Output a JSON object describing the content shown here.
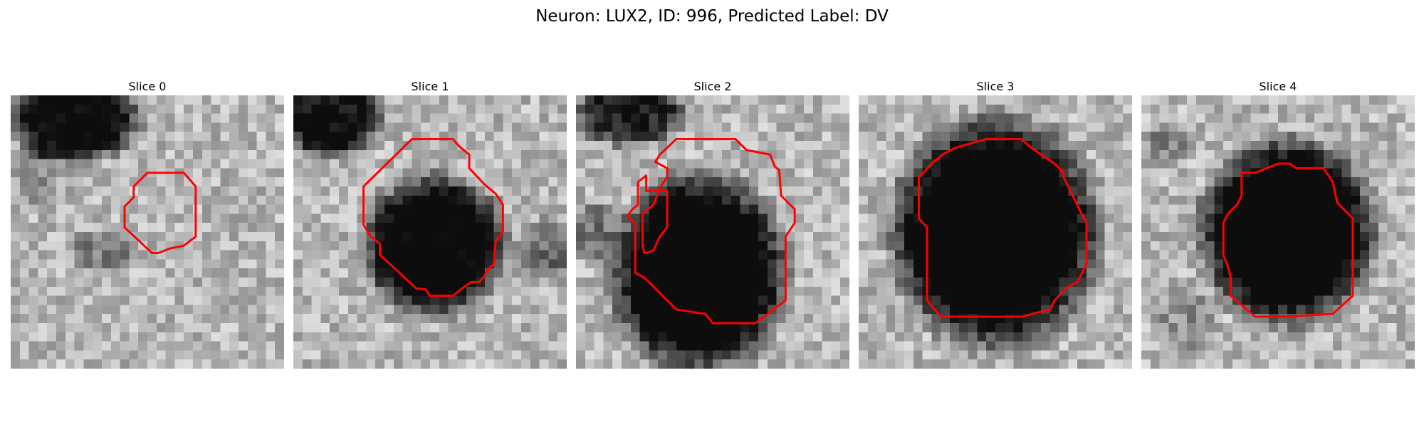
{
  "figure": {
    "title": "Neuron: LUX2, ID: 996, Predicted Label: DV"
  },
  "panels": [
    {
      "title": "Slice 0"
    },
    {
      "title": "Slice 1"
    },
    {
      "title": "Slice 2"
    },
    {
      "title": "Slice 3"
    },
    {
      "title": "Slice 4"
    }
  ],
  "colors": {
    "contour": "#ff0000",
    "background": "#ffffff"
  }
}
